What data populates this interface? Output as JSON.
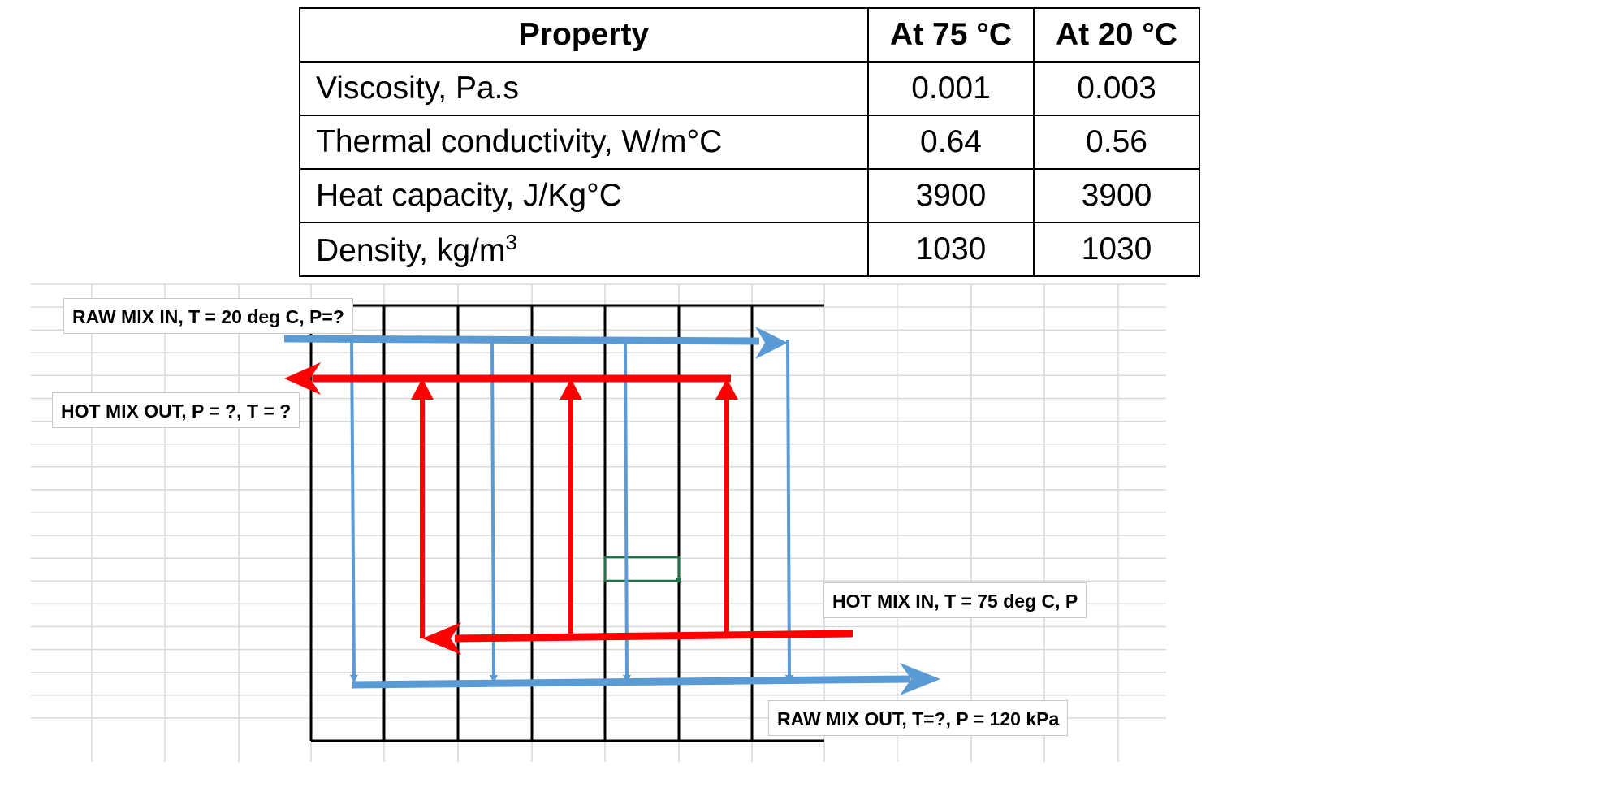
{
  "table": {
    "headers": [
      "Property",
      "At 75 °C",
      "At 20 °C"
    ],
    "rows": [
      {
        "property": "Viscosity, Pa.s",
        "at75": "0.001",
        "at20": "0.003"
      },
      {
        "property": "Thermal conductivity, W/m°C",
        "at75": "0.64",
        "at20": "0.56"
      },
      {
        "property": "Heat capacity, J/Kg°C",
        "at75": "3900",
        "at20": "3900"
      },
      {
        "property": "Density, kg/m",
        "superscript": "3",
        "at75": "1030",
        "at20": "1030"
      }
    ]
  },
  "labels": {
    "raw_in": "RAW MIX IN, T = 20 deg C, P=?",
    "hot_out": "HOT MIX OUT, P = ?, T = ?",
    "hot_in": "HOT MIX IN, T = 75 deg C, P",
    "raw_out": "RAW MIX OUT, T=?, P = 120 kPa"
  },
  "colors": {
    "cold_stream": "#5b9bd5",
    "hot_stream": "#ff0000",
    "selected_cell": "#217346"
  }
}
